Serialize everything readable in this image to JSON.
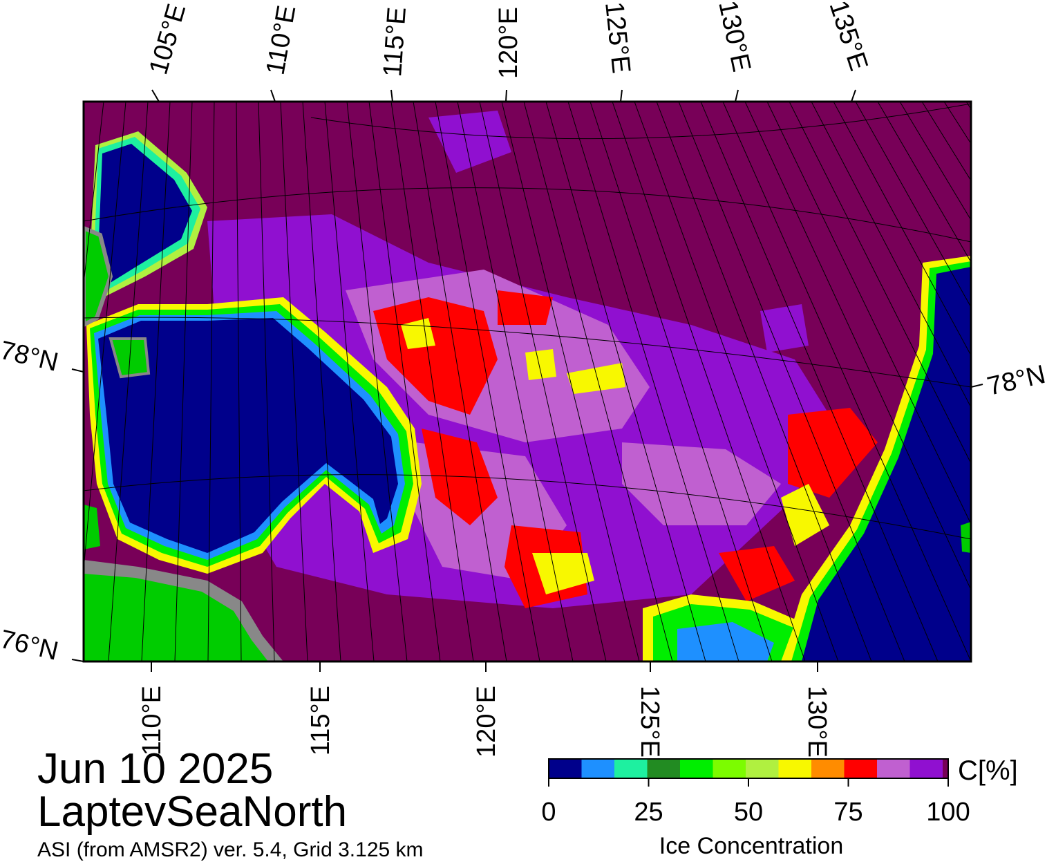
{
  "title": {
    "date": "Jun 10 2025",
    "region": "LaptevSeaNorth",
    "subtitle": "ASI (from AMSR2) ver. 5.4,  Grid 3.125 km"
  },
  "map": {
    "top_lon_labels": [
      "105°E",
      "110°E",
      "115°E",
      "120°E",
      "125°E",
      "130°E",
      "135°E"
    ],
    "bottom_lon_labels": [
      "110°E",
      "115°E",
      "120°E",
      "125°E",
      "130°E"
    ],
    "left_lat_labels": [
      "78°N",
      "76°N"
    ],
    "right_lat_labels": [
      "78°N"
    ]
  },
  "colorbar": {
    "title": "Ice Concentration",
    "unit": "C[%]",
    "tick_labels": [
      "0",
      "25",
      "50",
      "75",
      "100"
    ],
    "colors": [
      "#00008b",
      "#1e90ff",
      "#1ef0a0",
      "#228b22",
      "#00ee00",
      "#7cfc00",
      "#b0f040",
      "#f8f800",
      "#ff8c00",
      "#ff0000",
      "#c060d0",
      "#9010d0",
      "#780058"
    ],
    "colors_meaning": {
      "open_water": "#00008b",
      "high_ice": "#780058",
      "land": "#00cc00",
      "coast": "#888888"
    }
  }
}
